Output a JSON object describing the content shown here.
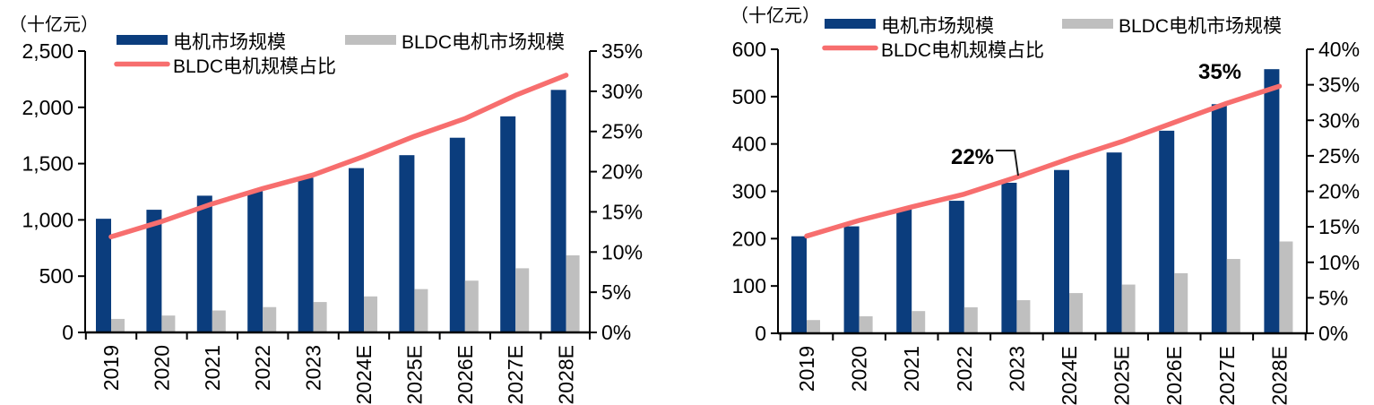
{
  "page": {
    "background": "#FFFFFF"
  },
  "colors": {
    "bar_motor": "#0B3D7D",
    "bar_bldc": "#BFBFBF",
    "trend_line": "#F76E6E",
    "annotation": "#C00000",
    "axis": "#000000"
  },
  "chart_data": [
    {
      "position": "left",
      "type": "combo-bar-line",
      "title": "",
      "unit_label": "（十亿元）",
      "legend_position": "top",
      "grid": false,
      "categories": [
        "2019",
        "2020",
        "2021",
        "2022",
        "2023",
        "2024E",
        "2025E",
        "2026E",
        "2027E",
        "2028E"
      ],
      "series": [
        {
          "name": "电机市场规模",
          "type": "bar",
          "axis": "left",
          "color": "#0B3D7D",
          "values": [
            1010,
            1090,
            1215,
            1255,
            1375,
            1460,
            1575,
            1730,
            1920,
            2155
          ]
        },
        {
          "name": "BLDC电机市场规模",
          "type": "bar",
          "axis": "left",
          "color": "#BFBFBF",
          "values": [
            120,
            150,
            195,
            225,
            270,
            320,
            385,
            460,
            570,
            685
          ]
        },
        {
          "name": "BLDC电机规模占比",
          "type": "line",
          "axis": "right",
          "color": "#F76E6E",
          "values": [
            11.9,
            13.8,
            16.0,
            17.9,
            19.6,
            21.9,
            24.4,
            26.6,
            29.5,
            32.0
          ]
        }
      ],
      "left_axis": {
        "min": 0,
        "max": 2500,
        "step": 500,
        "tick_labels": [
          "0",
          "500",
          "1,000",
          "1,500",
          "2,000",
          "2,500"
        ]
      },
      "right_axis": {
        "min": 0,
        "max": 35,
        "step": 5,
        "tick_labels": [
          "0%",
          "5%",
          "10%",
          "15%",
          "20%",
          "25%",
          "30%",
          "35%"
        ]
      },
      "annotations": []
    },
    {
      "position": "right",
      "type": "combo-bar-line",
      "title": "",
      "unit_label": "（十亿元）",
      "legend_position": "top",
      "grid": false,
      "categories": [
        "2019",
        "2020",
        "2021",
        "2022",
        "2023",
        "2024E",
        "2025E",
        "2026E",
        "2027E",
        "2028E"
      ],
      "series": [
        {
          "name": "电机市场规模",
          "type": "bar",
          "axis": "left",
          "color": "#0B3D7D",
          "values": [
            205,
            226,
            264,
            280,
            318,
            345,
            382,
            428,
            484,
            558
          ]
        },
        {
          "name": "BLDC电机市场规模",
          "type": "bar",
          "axis": "left",
          "color": "#BFBFBF",
          "values": [
            28,
            36,
            47,
            55,
            70,
            85,
            103,
            127,
            157,
            194
          ]
        },
        {
          "name": "BLDC电机规模占比",
          "type": "line",
          "axis": "right",
          "color": "#F76E6E",
          "values": [
            13.7,
            15.9,
            17.8,
            19.6,
            22.0,
            24.6,
            27.0,
            29.7,
            32.4,
            34.8
          ]
        }
      ],
      "left_axis": {
        "min": 0,
        "max": 600,
        "step": 100,
        "tick_labels": [
          "0",
          "100",
          "200",
          "300",
          "400",
          "500",
          "600"
        ]
      },
      "right_axis": {
        "min": 0,
        "max": 40,
        "step": 5,
        "tick_labels": [
          "0%",
          "5%",
          "10%",
          "15%",
          "20%",
          "25%",
          "30%",
          "35%",
          "40%"
        ]
      },
      "annotations": [
        {
          "text": "22%",
          "category": "2023",
          "color": "#C00000"
        },
        {
          "text": "35%",
          "category": "2028E",
          "color": "#C00000"
        }
      ]
    }
  ]
}
